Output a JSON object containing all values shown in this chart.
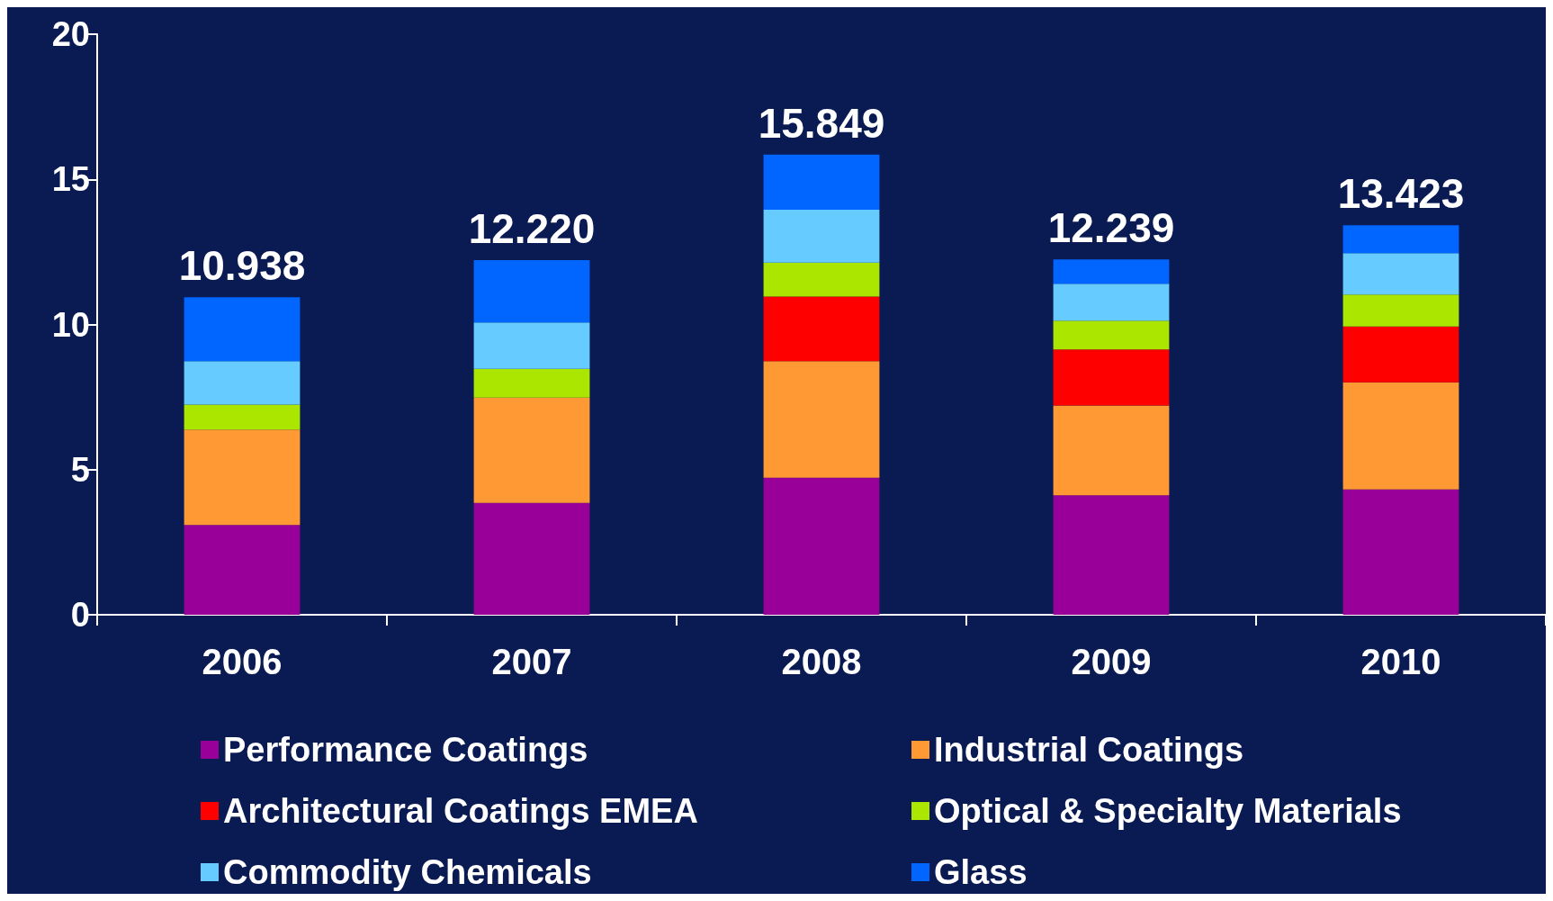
{
  "chart_data": {
    "type": "bar",
    "stacked": true,
    "categories": [
      "2006",
      "2007",
      "2008",
      "2009",
      "2010"
    ],
    "series": [
      {
        "name": "Performance Coatings",
        "color": "#990099",
        "values": [
          3.09,
          3.85,
          4.72,
          4.12,
          4.32
        ]
      },
      {
        "name": "Industrial Coatings",
        "color": "#ff9933",
        "values": [
          3.29,
          3.63,
          4.02,
          3.09,
          3.69
        ]
      },
      {
        "name": "Architectural Coatings EMEA",
        "color": "#ff0000",
        "values": [
          null,
          null,
          2.22,
          1.93,
          1.92
        ]
      },
      {
        "name": "Optical & Specialty Materials",
        "color": "#aae600",
        "values": [
          0.86,
          0.99,
          1.17,
          0.99,
          1.1
        ]
      },
      {
        "name": "Commodity Chemicals",
        "color": "#66ccff",
        "values": [
          1.5,
          1.6,
          1.82,
          1.27,
          1.43
        ]
      },
      {
        "name": "Glass",
        "color": "#0066ff",
        "values": [
          2.2,
          2.15,
          1.9,
          0.84,
          0.96
        ]
      }
    ],
    "totals": [
      "10.938",
      "12.220",
      "15.849",
      "12.239",
      "13.423"
    ],
    "ylim": [
      0,
      20
    ],
    "yticks": [
      0,
      5,
      10,
      15,
      20
    ],
    "grid": false,
    "legend": "bottom"
  }
}
